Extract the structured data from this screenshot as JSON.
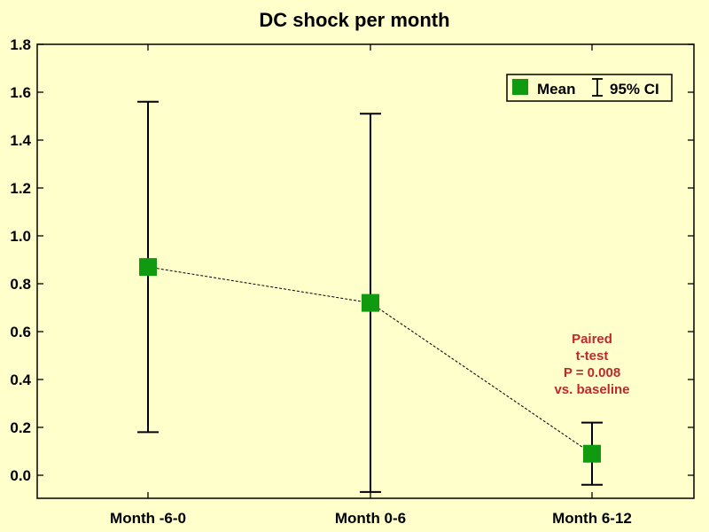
{
  "chart_data": {
    "type": "scatter",
    "title": "DC shock per month",
    "xlabel": "",
    "ylabel": "",
    "categories": [
      "Month -6-0",
      "Month 0-6",
      "Month 6-12"
    ],
    "series": [
      {
        "name": "Mean",
        "values": [
          0.87,
          0.72,
          0.09
        ],
        "ci_low": [
          0.18,
          -0.07,
          -0.04
        ],
        "ci_high": [
          1.56,
          1.51,
          0.22
        ]
      }
    ],
    "error_bar_label": "95% CI",
    "ylim": [
      -0.1,
      1.8
    ],
    "yticks": [
      "0.0",
      "0.2",
      "0.4",
      "0.6",
      "0.8",
      "1.0",
      "1.2",
      "1.4",
      "1.6",
      "1.8"
    ],
    "ytick_values": [
      0,
      0.2,
      0.4,
      0.6,
      0.8,
      1.0,
      1.2,
      1.4,
      1.6,
      1.8
    ],
    "grid": false,
    "legend_position": "top-right",
    "annotation": {
      "lines": [
        "Paired",
        "t-test",
        "P = 0.008",
        "vs. baseline"
      ],
      "category_index": 2,
      "color": "#c0282d"
    },
    "colors": {
      "marker": "#0f9a0f",
      "background": "#ffffcc",
      "connector": "#000000"
    }
  }
}
